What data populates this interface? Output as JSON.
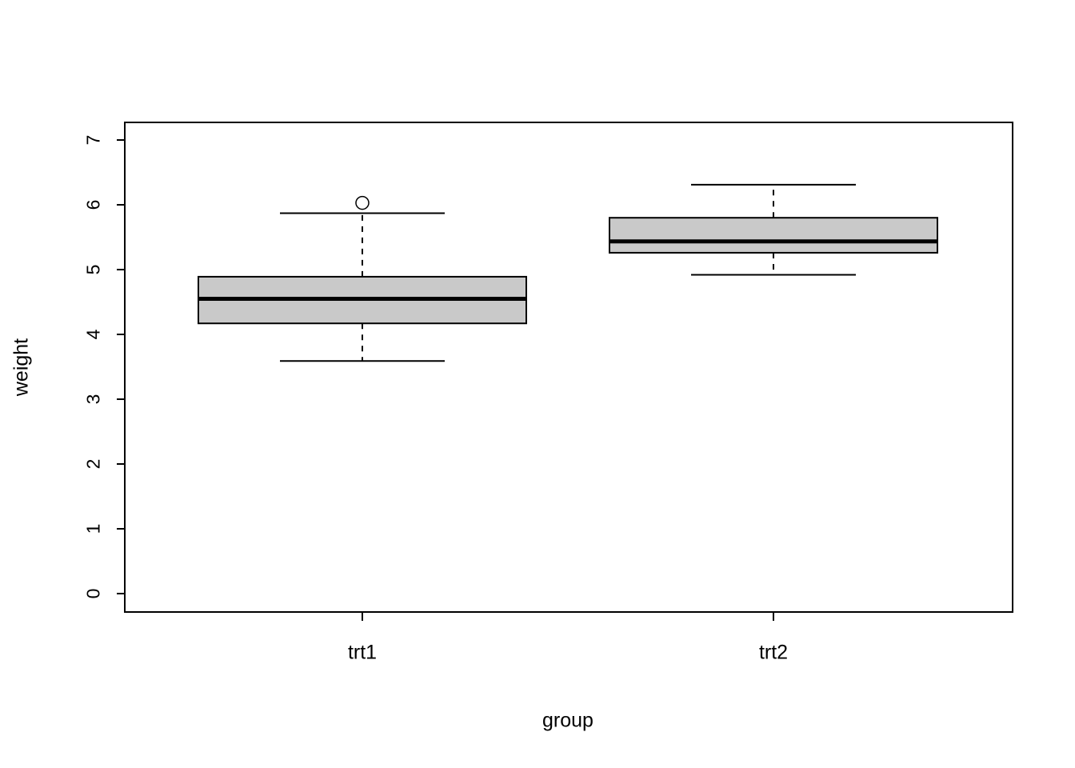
{
  "figure": {
    "background": "#ffffff",
    "foreground": "#000000"
  },
  "chart_data": {
    "type": "boxplot",
    "title": "",
    "xlabel": "group",
    "ylabel": "weight",
    "categories": [
      "trt1",
      "trt2"
    ],
    "ylim": [
      0,
      7
    ],
    "yticks": [
      "0",
      "1",
      "2",
      "3",
      "4",
      "5",
      "6",
      "7"
    ],
    "grid": false,
    "legend_position": "none",
    "box_fill": "#c9c9c9",
    "box_stroke": "#000000",
    "series": [
      {
        "name": "trt1",
        "whisker_low": 3.59,
        "q1": 4.17,
        "median": 4.55,
        "q3": 4.89,
        "whisker_high": 5.87,
        "outliers": [
          6.03
        ]
      },
      {
        "name": "trt2",
        "whisker_low": 4.92,
        "q1": 5.26,
        "median": 5.435,
        "q3": 5.8,
        "whisker_high": 6.31,
        "outliers": []
      }
    ]
  }
}
